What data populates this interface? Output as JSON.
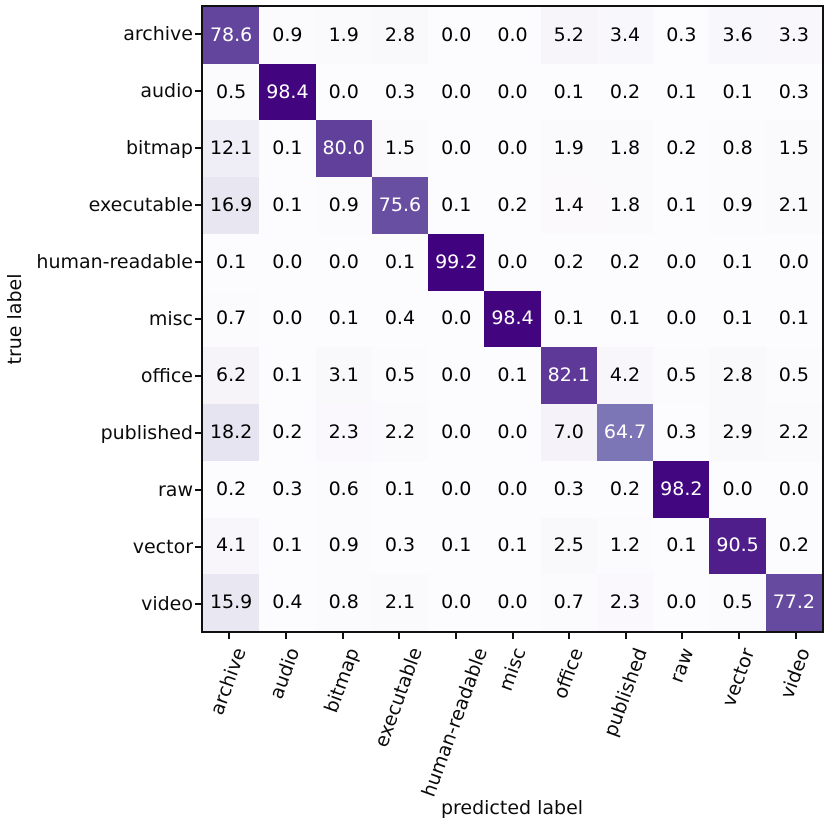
{
  "chart_data": {
    "type": "heatmap",
    "title": "",
    "xlabel": "predicted label",
    "ylabel": "true label",
    "categories": [
      "archive",
      "audio",
      "bitmap",
      "executable",
      "human-readable",
      "misc",
      "office",
      "published",
      "raw",
      "vector",
      "video"
    ],
    "matrix": [
      [
        78.6,
        0.9,
        1.9,
        2.8,
        0.0,
        0.0,
        5.2,
        3.4,
        0.3,
        3.6,
        3.3
      ],
      [
        0.5,
        98.4,
        0.0,
        0.3,
        0.0,
        0.0,
        0.1,
        0.2,
        0.1,
        0.1,
        0.3
      ],
      [
        12.1,
        0.1,
        80.0,
        1.5,
        0.0,
        0.0,
        1.9,
        1.8,
        0.2,
        0.8,
        1.5
      ],
      [
        16.9,
        0.1,
        0.9,
        75.6,
        0.1,
        0.2,
        1.4,
        1.8,
        0.1,
        0.9,
        2.1
      ],
      [
        0.1,
        0.0,
        0.0,
        0.1,
        99.2,
        0.0,
        0.2,
        0.2,
        0.0,
        0.1,
        0.0
      ],
      [
        0.7,
        0.0,
        0.1,
        0.4,
        0.0,
        98.4,
        0.1,
        0.1,
        0.0,
        0.1,
        0.1
      ],
      [
        6.2,
        0.1,
        3.1,
        0.5,
        0.0,
        0.1,
        82.1,
        4.2,
        0.5,
        2.8,
        0.5
      ],
      [
        18.2,
        0.2,
        2.3,
        2.2,
        0.0,
        0.0,
        7.0,
        64.7,
        0.3,
        2.9,
        2.2
      ],
      [
        0.2,
        0.3,
        0.6,
        0.1,
        0.0,
        0.0,
        0.3,
        0.2,
        98.2,
        0.0,
        0.0
      ],
      [
        4.1,
        0.1,
        0.9,
        0.3,
        0.1,
        0.1,
        2.5,
        1.2,
        0.1,
        90.5,
        0.2
      ],
      [
        15.9,
        0.4,
        0.8,
        2.1,
        0.0,
        0.0,
        0.7,
        2.3,
        0.0,
        0.5,
        77.2
      ]
    ],
    "value_range": [
      0,
      100
    ],
    "decimals": 1,
    "grid": false,
    "legend": "none",
    "colormap": {
      "name": "Purples",
      "stops": [
        [
          0.0,
          "#fcfbfd"
        ],
        [
          0.125,
          "#efedf5"
        ],
        [
          0.25,
          "#dadaeb"
        ],
        [
          0.375,
          "#bcbddc"
        ],
        [
          0.5,
          "#9e9ac8"
        ],
        [
          0.625,
          "#807dba"
        ],
        [
          0.75,
          "#6a51a3"
        ],
        [
          0.875,
          "#54278f"
        ],
        [
          1.0,
          "#3f007d"
        ]
      ]
    },
    "cell_text": {
      "color_on_dark": "#ffffff",
      "color_on_light": "#000000",
      "white_text_threshold": 50
    },
    "axis_color": "#101010"
  }
}
